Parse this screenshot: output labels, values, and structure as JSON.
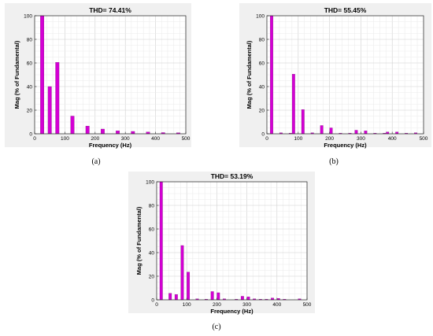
{
  "chart_data": [
    {
      "type": "bar",
      "title": "THD= 74.41%",
      "xlabel": "Frequency (Hz)",
      "ylabel": "Mag (% of Fundamental)",
      "xlim": [
        0,
        500
      ],
      "ylim": [
        0,
        100
      ],
      "xticks": [
        0,
        100,
        200,
        300,
        400,
        500
      ],
      "yticks": [
        0,
        20,
        40,
        60,
        80,
        100
      ],
      "grid": true,
      "bar_color": "#d400d4",
      "caption": "(a)",
      "x": [
        25,
        50,
        75,
        125,
        175,
        225,
        275,
        325,
        375,
        425,
        475
      ],
      "values": [
        100,
        40,
        60.5,
        15,
        6.5,
        4,
        2.5,
        2,
        1.5,
        1,
        0.8
      ]
    },
    {
      "type": "bar",
      "title": "THD= 55.45%",
      "xlabel": "Frequency (Hz)",
      "ylabel": "Mag (% of Fundamental)",
      "xlim": [
        0,
        500
      ],
      "ylim": [
        0,
        100
      ],
      "xticks": [
        0,
        100,
        200,
        300,
        400,
        500
      ],
      "yticks": [
        0,
        20,
        40,
        60,
        80,
        100
      ],
      "grid": true,
      "bar_color": "#d400d4",
      "caption": "(b)",
      "x": [
        15,
        45,
        75,
        85,
        115,
        145,
        175,
        205,
        235,
        265,
        285,
        315,
        345,
        375,
        385,
        415,
        445,
        475
      ],
      "values": [
        100,
        0.8,
        0.5,
        50.5,
        20.5,
        0.8,
        7,
        5,
        0.5,
        0.5,
        3,
        2.5,
        0.5,
        0.5,
        1.5,
        1.5,
        0.5,
        0.8
      ]
    },
    {
      "type": "bar",
      "title": "THD= 53.19%",
      "xlabel": "Frequency (Hz)",
      "ylabel": "Mag (% of Fundamental)",
      "xlim": [
        0,
        500
      ],
      "ylim": [
        0,
        100
      ],
      "xticks": [
        0,
        100,
        200,
        300,
        400,
        500
      ],
      "yticks": [
        0,
        20,
        40,
        60,
        80,
        100
      ],
      "grid": true,
      "bar_color": "#d400d4",
      "caption": "(c)",
      "x": [
        15,
        45,
        65,
        85,
        105,
        135,
        165,
        185,
        205,
        225,
        265,
        285,
        305,
        325,
        345,
        365,
        385,
        405,
        425,
        475
      ],
      "values": [
        100,
        5.5,
        4.5,
        46,
        23.5,
        0.8,
        0.5,
        7,
        6,
        0.8,
        0.5,
        3,
        2.5,
        0.8,
        0.5,
        0.5,
        1.5,
        1.2,
        0.5,
        0.8
      ]
    }
  ]
}
